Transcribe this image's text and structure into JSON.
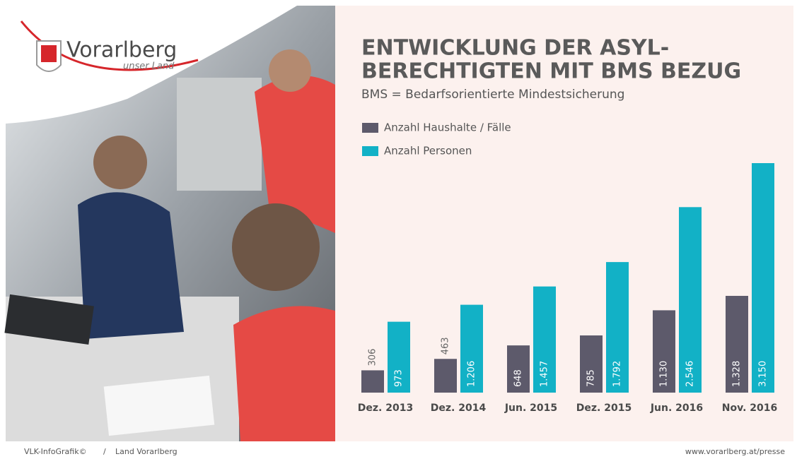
{
  "header": {
    "logo_name": "Vorarlberg",
    "logo_tagline": "unser Land"
  },
  "chart_data": {
    "type": "bar",
    "title": [
      "ENTWICKLUNG DER ASYL-",
      "BERECHTIGTEN MIT BMS BEZUG"
    ],
    "subtitle": "BMS = Bedarfsorientierte Mindestsicherung",
    "categories": [
      "Dez. 2013",
      "Dez. 2014",
      "Jun. 2015",
      "Dez. 2015",
      "Jun. 2016",
      "Nov. 2016"
    ],
    "series": [
      {
        "name": "Anzahl Haushalte / Fälle",
        "color": "#5d5a6b",
        "values": [
          306,
          463,
          648,
          785,
          1130,
          1328
        ],
        "value_labels": [
          "306",
          "463",
          "648",
          "785",
          "1.130",
          "1.328"
        ]
      },
      {
        "name": "Anzahl Personen",
        "color": "#12b1c6",
        "values": [
          973,
          1206,
          1457,
          1792,
          2546,
          3150
        ],
        "value_labels": [
          "973",
          "1.206",
          "1.457",
          "1.792",
          "2.546",
          "3.150"
        ]
      }
    ]
  },
  "footer": {
    "left": "VLK-InfoGrafik©",
    "separator": "/",
    "left_org": "Land Vorarlberg",
    "right": "www.vorarlberg.at/presse"
  }
}
